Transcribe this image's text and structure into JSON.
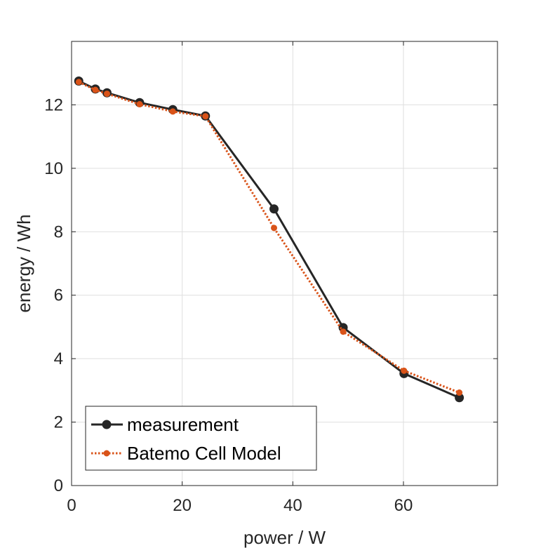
{
  "chart_data": {
    "type": "line",
    "xlabel": "power / W",
    "ylabel": "energy / Wh",
    "xlim": [
      0,
      77
    ],
    "ylim": [
      0,
      14
    ],
    "xticks": [
      0,
      20,
      40,
      60
    ],
    "yticks": [
      0,
      2,
      4,
      6,
      8,
      10,
      12
    ],
    "grid": true,
    "legend_position": "bottom-left",
    "series": [
      {
        "name": "measurement",
        "color": "#262626",
        "line_style": "solid",
        "marker": "circle",
        "x": [
          1.3,
          4.3,
          6.4,
          12.3,
          18.3,
          24.2,
          36.6,
          49.1,
          60.1,
          70.1
        ],
        "y": [
          12.75,
          12.5,
          12.38,
          12.07,
          11.85,
          11.65,
          8.72,
          4.98,
          3.53,
          2.77
        ]
      },
      {
        "name": "Batemo Cell Model",
        "color": "#D95319",
        "line_style": "dotted",
        "marker": "circle-small",
        "x": [
          1.3,
          4.3,
          6.4,
          12.3,
          18.3,
          24.2,
          36.6,
          49.1,
          60.1,
          70.1
        ],
        "y": [
          12.72,
          12.47,
          12.35,
          12.02,
          11.79,
          11.64,
          8.12,
          4.85,
          3.62,
          2.93
        ]
      }
    ]
  }
}
